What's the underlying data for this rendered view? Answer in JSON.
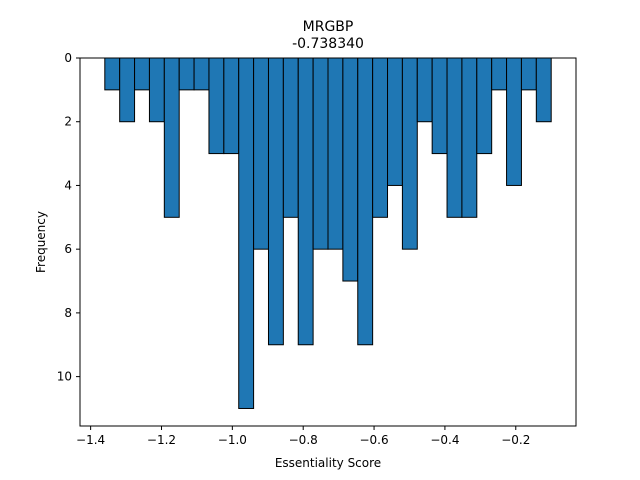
{
  "chart_data": {
    "type": "bar",
    "title": "MRGBP",
    "subtitle": "-0.738340",
    "xlabel": "Essentiality Score",
    "ylabel": "Frequency",
    "xlim": [
      -1.43,
      -0.03
    ],
    "ylim": [
      11.55,
      0
    ],
    "y_inverted": true,
    "bar_width": 0.042,
    "x_ticks": [
      -1.4,
      -1.2,
      -1.0,
      -0.8,
      -0.6,
      -0.4,
      -0.2
    ],
    "x_tick_labels": [
      "−1.4",
      "−1.2",
      "−1.0",
      "−0.8",
      "−0.6",
      "−0.4",
      "−0.2"
    ],
    "y_ticks": [
      0,
      2,
      4,
      6,
      8,
      10
    ],
    "y_tick_labels": [
      "0",
      "2",
      "4",
      "6",
      "8",
      "10"
    ],
    "grid": false,
    "bars": [
      {
        "x": -1.36,
        "value": 1
      },
      {
        "x": -1.318,
        "value": 2
      },
      {
        "x": -1.276,
        "value": 1
      },
      {
        "x": -1.234,
        "value": 2
      },
      {
        "x": -1.192,
        "value": 5
      },
      {
        "x": -1.15,
        "value": 1
      },
      {
        "x": -1.108,
        "value": 1
      },
      {
        "x": -1.066,
        "value": 3
      },
      {
        "x": -1.024,
        "value": 3
      },
      {
        "x": -0.982,
        "value": 11
      },
      {
        "x": -0.94,
        "value": 6
      },
      {
        "x": -0.898,
        "value": 9
      },
      {
        "x": -0.856,
        "value": 5
      },
      {
        "x": -0.814,
        "value": 9
      },
      {
        "x": -0.772,
        "value": 6
      },
      {
        "x": -0.73,
        "value": 6
      },
      {
        "x": -0.688,
        "value": 7
      },
      {
        "x": -0.646,
        "value": 9
      },
      {
        "x": -0.604,
        "value": 5
      },
      {
        "x": -0.562,
        "value": 4
      },
      {
        "x": -0.52,
        "value": 6
      },
      {
        "x": -0.478,
        "value": 2
      },
      {
        "x": -0.436,
        "value": 3
      },
      {
        "x": -0.394,
        "value": 5
      },
      {
        "x": -0.352,
        "value": 5
      },
      {
        "x": -0.31,
        "value": 3
      },
      {
        "x": -0.268,
        "value": 1
      },
      {
        "x": -0.226,
        "value": 4
      },
      {
        "x": -0.184,
        "value": 1
      },
      {
        "x": -0.142,
        "value": 2
      }
    ],
    "colors": {
      "bar_fill": "#1f77b4",
      "bar_edge": "#000000"
    }
  }
}
